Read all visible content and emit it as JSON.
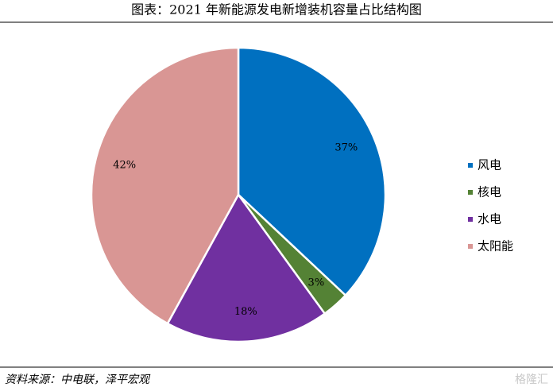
{
  "chart_data": {
    "type": "pie",
    "title": "图表：2021 年新能源发电新增装机容量占比结构图",
    "categories": [
      "风电",
      "核电",
      "水电",
      "太阳能"
    ],
    "values": [
      37,
      3,
      18,
      42
    ],
    "value_labels": [
      "37%",
      "3%",
      "18%",
      "42%"
    ],
    "colors": [
      "#0070c0",
      "#548235",
      "#7030a0",
      "#d99694"
    ],
    "legend": "right",
    "source": "资料来源：中电联，泽平宏观",
    "watermark": "格隆汇"
  }
}
